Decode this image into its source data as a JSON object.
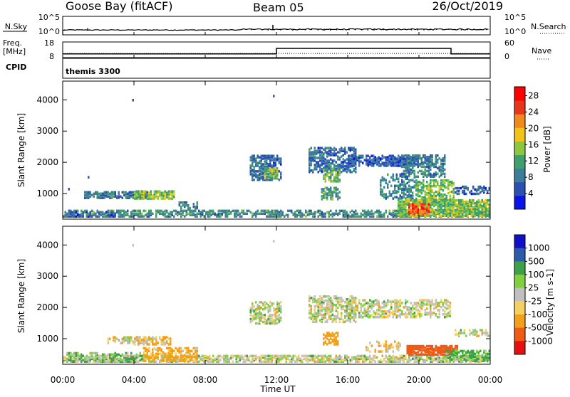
{
  "header": {
    "station": "Goose Bay (fitACF)",
    "beam": "Beam 05",
    "date": "26/Oct/2019"
  },
  "noise_panel": {
    "left_label": "N.Sky",
    "right_label": "N.Search",
    "left_ticks": [
      "10^5",
      "10^0"
    ],
    "right_ticks": [
      "10^5",
      "10^0"
    ]
  },
  "freq_panel": {
    "left_label_1": "Freq.",
    "left_label_2": "[MHz]",
    "right_label": "Nave",
    "left_ticks": [
      "18",
      "8"
    ],
    "right_ticks": [
      "60",
      "0"
    ]
  },
  "cpid": {
    "label": "CPID",
    "value": "themis 3300"
  },
  "power_panel": {
    "ylabel": "Slant Range [km]",
    "yticks": [
      "1000",
      "2000",
      "3000",
      "4000"
    ],
    "colorbar_label": "Power [dB]",
    "colorbar_ticks": [
      "4",
      "8",
      "12",
      "16",
      "20",
      "24",
      "28"
    ]
  },
  "velocity_panel": {
    "ylabel": "Slant Range [km]",
    "yticks": [
      "1000",
      "2000",
      "3000",
      "4000"
    ],
    "colorbar_label": "Velocity [m s-1]",
    "colorbar_ticks": [
      "1000",
      "500",
      "100",
      "25",
      "-25",
      "-100",
      "-500",
      "-1000"
    ]
  },
  "x_axis": {
    "ticks": [
      "00:00",
      "04:00",
      "08:00",
      "12:00",
      "16:00",
      "20:00",
      "00:00"
    ],
    "label": "Time UT"
  },
  "chart_data": [
    {
      "type": "line",
      "name": "noise",
      "x_range_hours": [
        0,
        24
      ],
      "y_scale": "log",
      "ylim": [
        1,
        100000
      ],
      "description_values_hours": [
        0,
        2,
        4,
        6,
        8,
        10,
        11,
        11.8,
        12,
        14,
        16,
        18,
        20,
        22,
        24
      ]
    },
    {
      "type": "line",
      "name": "frequency",
      "x_range_hours": [
        0,
        24
      ],
      "ylim_mhz": [
        8,
        18
      ],
      "x_hours": [
        0,
        12.0,
        12.0,
        21.8,
        21.8,
        24
      ],
      "freq_mhz": [
        10.4,
        10.4,
        13.9,
        13.9,
        10.4,
        10.4
      ],
      "nave_dotted_level": 16
    },
    {
      "type": "heatmap",
      "name": "power",
      "x_range_hours": [
        0,
        24
      ],
      "ylim_km": [
        180,
        4600
      ],
      "zlim_db": [
        0,
        30
      ],
      "colors": [
        "#0a14e6",
        "#2c4fb3",
        "#3c7d9c",
        "#3fa06e",
        "#8dc63f",
        "#f0c419",
        "#f08a1c",
        "#e8361d",
        "#ff0000"
      ],
      "regions": [
        {
          "t0": 0.0,
          "t1": 24.0,
          "r0": 180,
          "r1": 420,
          "db": 10,
          "density": 0.55
        },
        {
          "t0": 0.2,
          "t1": 3.0,
          "r0": 180,
          "r1": 380,
          "db": 6,
          "density": 0.5
        },
        {
          "t0": 1.2,
          "t1": 4.8,
          "r0": 820,
          "r1": 1020,
          "db": 8,
          "density": 0.6
        },
        {
          "t0": 4.0,
          "t1": 6.2,
          "r0": 800,
          "r1": 1050,
          "db": 15,
          "density": 0.7
        },
        {
          "t0": 6.5,
          "t1": 7.5,
          "r0": 400,
          "r1": 700,
          "db": 9,
          "density": 0.4
        },
        {
          "t0": 10.5,
          "t1": 12.2,
          "r0": 1400,
          "r1": 2200,
          "db": 7,
          "density": 0.55
        },
        {
          "t0": 11.3,
          "t1": 12.0,
          "r0": 1450,
          "r1": 1800,
          "db": 14,
          "density": 0.7
        },
        {
          "t0": 13.8,
          "t1": 16.5,
          "r0": 1650,
          "r1": 2450,
          "db": 7,
          "density": 0.5
        },
        {
          "t0": 14.6,
          "t1": 15.5,
          "r0": 1350,
          "r1": 1800,
          "db": 13,
          "density": 0.6
        },
        {
          "t0": 14.5,
          "t1": 15.5,
          "r0": 780,
          "r1": 1150,
          "db": 11,
          "density": 0.55
        },
        {
          "t0": 16.0,
          "t1": 20.0,
          "r0": 1850,
          "r1": 2200,
          "db": 6,
          "density": 0.6
        },
        {
          "t0": 17.8,
          "t1": 19.8,
          "r0": 800,
          "r1": 1600,
          "db": 9,
          "density": 0.35
        },
        {
          "t0": 19.0,
          "t1": 21.5,
          "r0": 1500,
          "r1": 2200,
          "db": 9,
          "density": 0.5
        },
        {
          "t0": 19.8,
          "t1": 22.0,
          "r0": 700,
          "r1": 1400,
          "db": 14,
          "density": 0.45
        },
        {
          "t0": 18.8,
          "t1": 24.0,
          "r0": 200,
          "r1": 750,
          "db": 14,
          "density": 0.75
        },
        {
          "t0": 19.4,
          "t1": 20.6,
          "r0": 300,
          "r1": 650,
          "db": 24,
          "density": 0.7
        },
        {
          "t0": 22.0,
          "t1": 24.0,
          "r0": 950,
          "r1": 1200,
          "db": 6,
          "density": 0.45
        }
      ],
      "isolated_points": [
        {
          "t": 3.9,
          "r": 3950
        },
        {
          "t": 11.8,
          "r": 4080
        },
        {
          "t": 1.4,
          "r": 1480
        },
        {
          "t": 0.3,
          "r": 1100
        }
      ]
    },
    {
      "type": "heatmap",
      "name": "velocity",
      "x_range_hours": [
        0,
        24
      ],
      "ylim_km": [
        180,
        4600
      ],
      "zlim_ms": [
        -1000,
        1000
      ],
      "colors": {
        "-1000": "#e51010",
        "-500": "#f05a12",
        "-100": "#f0a01a",
        "-25": "#f5d060",
        "0": "#c0c0c0",
        "25": "#80d040",
        "100": "#3fa04a",
        "500": "#2c5ca8",
        "1000": "#1010c8"
      },
      "regions": [
        {
          "t0": 0.0,
          "t1": 24.0,
          "r0": 180,
          "r1": 420,
          "vel": 0,
          "density": 0.6
        },
        {
          "t0": 0.2,
          "t1": 4.5,
          "r0": 180,
          "r1": 500,
          "vel": 60,
          "density": 0.45
        },
        {
          "t0": 4.5,
          "t1": 7.5,
          "r0": 250,
          "r1": 700,
          "vel": -80,
          "density": 0.5
        },
        {
          "t0": 2.5,
          "t1": 5.0,
          "r0": 820,
          "r1": 1020,
          "vel": -10,
          "density": 0.45
        },
        {
          "t0": 4.0,
          "t1": 6.0,
          "r0": 780,
          "r1": 1050,
          "vel": -50,
          "density": 0.55
        },
        {
          "t0": 10.5,
          "t1": 12.2,
          "r0": 1450,
          "r1": 2150,
          "vel": 0,
          "density": 0.55
        },
        {
          "t0": 13.8,
          "t1": 16.5,
          "r0": 1500,
          "r1": 2350,
          "vel": 0,
          "density": 0.5
        },
        {
          "t0": 14.6,
          "t1": 15.4,
          "r0": 780,
          "r1": 1150,
          "vel": -150,
          "density": 0.55
        },
        {
          "t0": 16.2,
          "t1": 21.8,
          "r0": 1650,
          "r1": 2200,
          "vel": 0,
          "density": 0.45
        },
        {
          "t0": 17.0,
          "t1": 19.0,
          "r0": 550,
          "r1": 900,
          "vel": -60,
          "density": 0.3
        },
        {
          "t0": 19.3,
          "t1": 22.2,
          "r0": 450,
          "r1": 760,
          "vel": -450,
          "density": 0.75
        },
        {
          "t0": 22.0,
          "t1": 24.0,
          "r0": 1050,
          "r1": 1250,
          "vel": 0,
          "density": 0.4
        },
        {
          "t0": 21.5,
          "t1": 24.0,
          "r0": 250,
          "r1": 600,
          "vel": 80,
          "density": 0.45
        }
      ],
      "isolated_points": [
        {
          "t": 3.9,
          "r": 3950
        },
        {
          "t": 11.8,
          "r": 4080
        }
      ]
    }
  ]
}
